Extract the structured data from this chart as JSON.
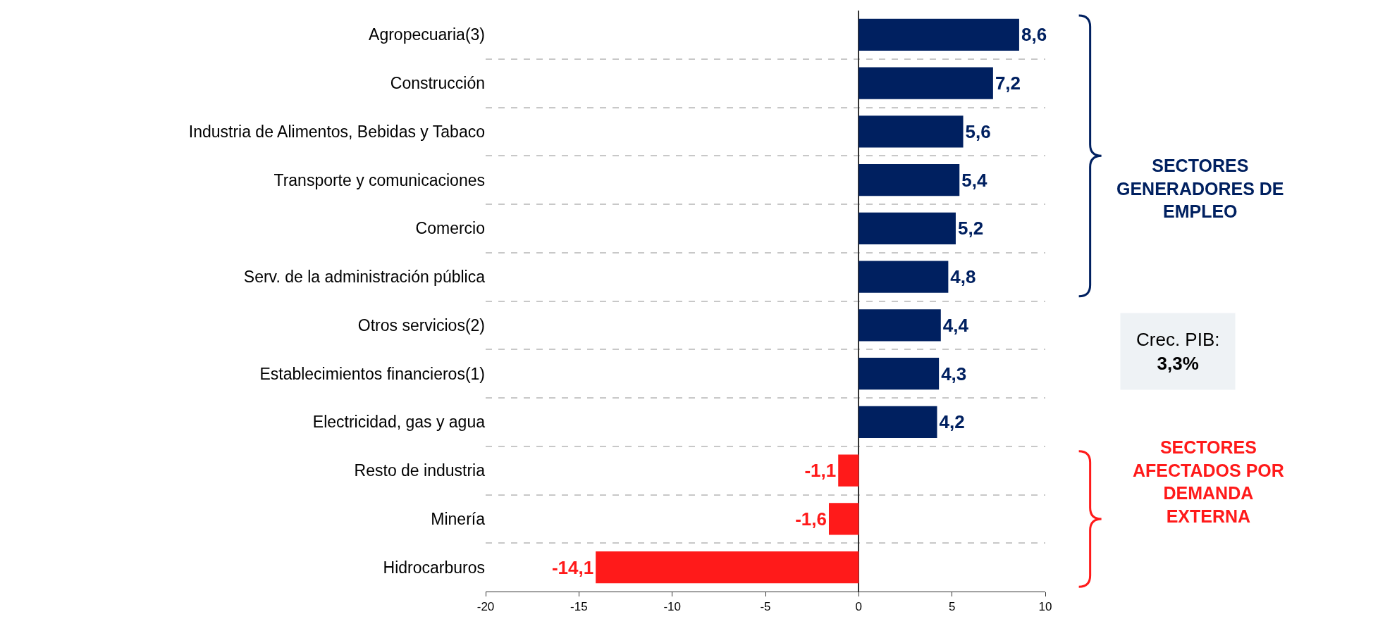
{
  "chart_data": {
    "type": "bar",
    "orientation": "horizontal",
    "categories": [
      "Agropecuaria(3)",
      "Construcción",
      "Industria de Alimentos, Bebidas y Tabaco",
      "Transporte y comunicaciones",
      "Comercio",
      "Serv. de la administración pública",
      "Otros servicios(2)",
      "Establecimientos financieros(1)",
      "Electricidad, gas y agua",
      "Resto de industria",
      "Minería",
      "Hidrocarburos"
    ],
    "values": [
      8.6,
      7.2,
      5.6,
      5.4,
      5.2,
      4.8,
      4.4,
      4.3,
      4.2,
      -1.1,
      -1.6,
      -14.1
    ],
    "value_labels": [
      "8,6",
      "7,2",
      "5,6",
      "5,4",
      "5,2",
      "4,8",
      "4,4",
      "4,3",
      "4,2",
      "-1,1",
      "-1,6",
      "-14,1"
    ],
    "colors": [
      "#002060",
      "#002060",
      "#002060",
      "#002060",
      "#002060",
      "#002060",
      "#002060",
      "#002060",
      "#002060",
      "#ff1a1a",
      "#ff1a1a",
      "#ff1a1a"
    ],
    "xlim": [
      -20,
      10
    ],
    "xticks": [
      -20,
      -15,
      -10,
      -5,
      0,
      5,
      10
    ],
    "grid": "y",
    "annotations": [
      "SECTORES GENERADORES DE EMPLEO",
      "SECTORES AFECTADOS POR DEMANDA EXTERNA",
      "Crec. PIB:\n3,3%"
    ]
  }
}
